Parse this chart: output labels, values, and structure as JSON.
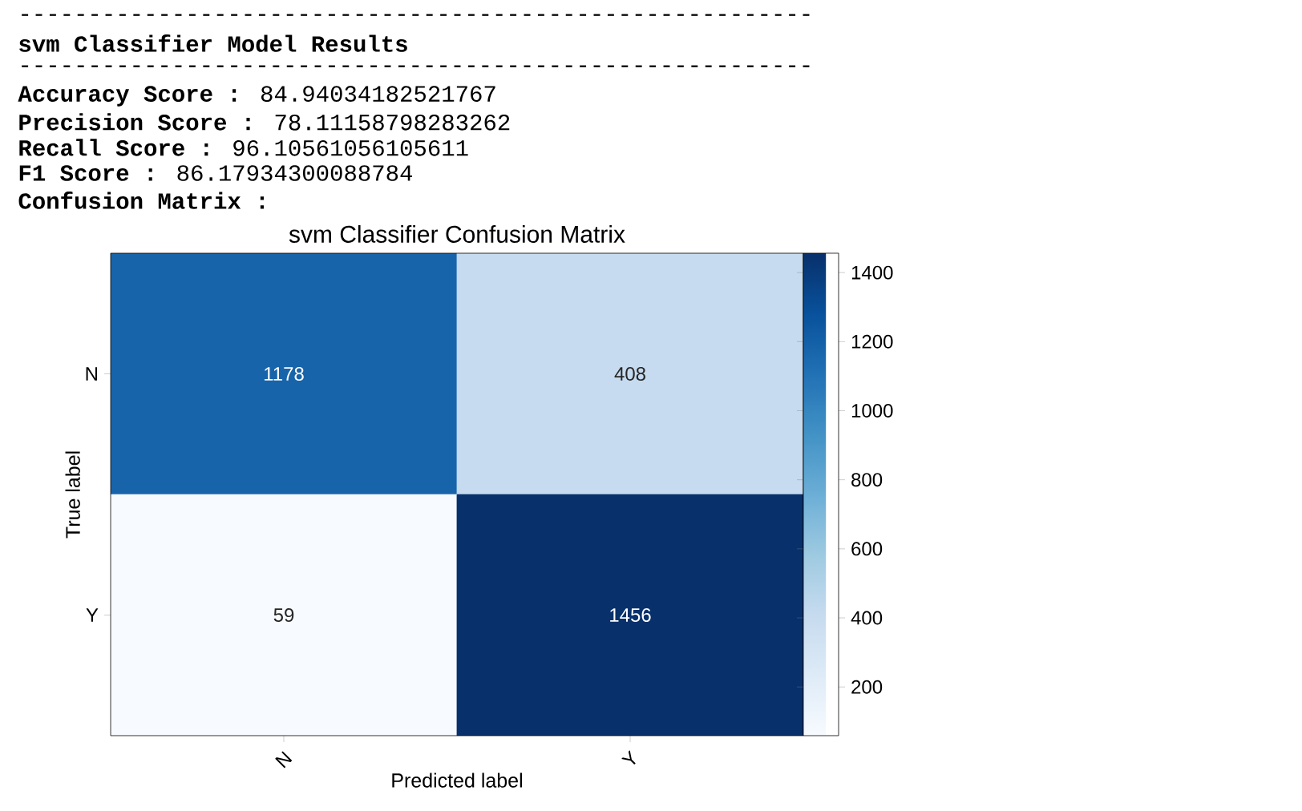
{
  "chart_data": {
    "type": "heatmap",
    "title": "svm Classifier Confusion Matrix",
    "xlabel": "Predicted label",
    "ylabel": "True label",
    "categories": [
      "N",
      "Y"
    ],
    "y_categories": [
      "N",
      "Y"
    ],
    "cells": [
      [
        1178,
        408
      ],
      [
        59,
        1456
      ]
    ],
    "clim": [
      59,
      1456
    ],
    "cticks": [
      200,
      400,
      600,
      800,
      1000,
      1200,
      1400
    ],
    "data_labels": true,
    "annotations": [
      "---------------------------------------------------------",
      "**svm Classifier Model Results**",
      "---------------------------------------------------------",
      "**Accuracy Score :** 84.94034182521767",
      "**Precision Score :** 78.11158798283262",
      "**Recall Score :** 96.10561056105611",
      "**F1 Score :** 86.17934300088784",
      "**Confusion Matrix :**"
    ]
  }
}
